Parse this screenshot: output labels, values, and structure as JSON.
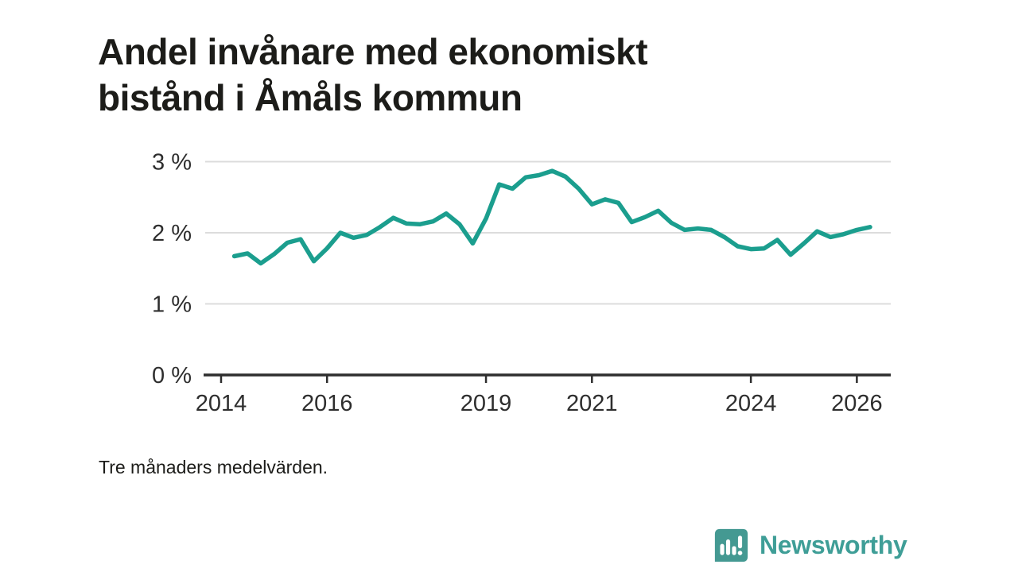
{
  "header": {
    "title_line1": "Andel invånare med ekonomiskt",
    "title_line2": "bistånd i Åmåls kommun"
  },
  "footer": {
    "note": "Tre månaders medelvärden.",
    "brand_name": "Newsworthy",
    "brand_color": "#3f9e97",
    "brand_icon": "newsworthy-speech-bubble-bar-chart-icon"
  },
  "chart_data": {
    "type": "line",
    "title": "Andel invånare med ekonomiskt bistånd i Åmåls kommun",
    "note": "Tre månaders medelvärden.",
    "xlabel": "",
    "ylabel": "",
    "xlim": [
      2013.7,
      2026.64
    ],
    "ylim": [
      0,
      3
    ],
    "xticks": [
      2014,
      2016,
      2019,
      2021,
      2024,
      2026
    ],
    "xtick_labels": [
      "2014",
      "2016",
      "2019",
      "2021",
      "2024",
      "2026"
    ],
    "yticks": [
      0,
      1,
      2,
      3
    ],
    "ytick_labels": [
      "0 %",
      "1 %",
      "2 %",
      "3 %"
    ],
    "grid": "horizontal-gridlines-at-1-2-3-percent",
    "legend": "none",
    "gridline_color": "#dcdcdc",
    "axis_color": "#2e2e2e",
    "tick_label_color": "#2e2e2e",
    "series": [
      {
        "name": "Andel invånare med ekonomiskt bistånd",
        "color": "#1b9e8e",
        "x": [
          2014.25,
          2014.5,
          2014.75,
          2015.0,
          2015.25,
          2015.5,
          2015.75,
          2016.0,
          2016.25,
          2016.5,
          2016.75,
          2017.0,
          2017.25,
          2017.5,
          2017.75,
          2018.0,
          2018.25,
          2018.5,
          2018.75,
          2019.0,
          2019.25,
          2019.5,
          2019.75,
          2020.0,
          2020.25,
          2020.5,
          2020.75,
          2021.0,
          2021.25,
          2021.5,
          2021.75,
          2022.0,
          2022.25,
          2022.5,
          2022.75,
          2023.0,
          2023.25,
          2023.5,
          2023.75,
          2024.0,
          2024.25,
          2024.5,
          2024.75,
          2025.0,
          2025.25,
          2025.5,
          2025.75,
          2026.0,
          2026.25
        ],
        "values": [
          1.67,
          1.71,
          1.57,
          1.7,
          1.86,
          1.91,
          1.6,
          1.78,
          2.0,
          1.93,
          1.97,
          2.08,
          2.21,
          2.13,
          2.12,
          2.16,
          2.27,
          2.12,
          1.85,
          2.2,
          2.68,
          2.62,
          2.78,
          2.81,
          2.87,
          2.79,
          2.62,
          2.4,
          2.47,
          2.42,
          2.15,
          2.22,
          2.31,
          2.14,
          2.04,
          2.06,
          2.04,
          1.94,
          1.81,
          1.77,
          1.78,
          1.9,
          1.69,
          1.85,
          2.02,
          1.94,
          1.98,
          2.04,
          2.08
        ]
      }
    ]
  }
}
